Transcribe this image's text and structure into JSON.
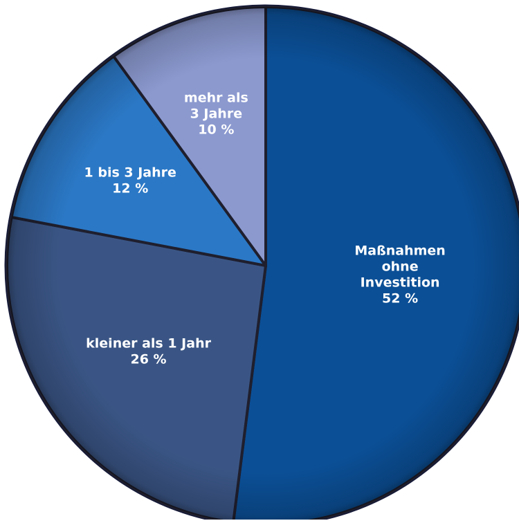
{
  "chart_data": {
    "type": "pie",
    "title": "",
    "slices": [
      {
        "label_lines": [
          "Maßnahmen",
          "ohne",
          "Investition"
        ],
        "value": 52,
        "value_text": "52 %",
        "color": "#0b4f96"
      },
      {
        "label_lines": [
          "kleiner als 1 Jahr"
        ],
        "value": 26,
        "value_text": "26 %",
        "color": "#3a5585"
      },
      {
        "label_lines": [
          "1 bis 3 Jahre"
        ],
        "value": 12,
        "value_text": "12 %",
        "color": "#2b78c6"
      },
      {
        "label_lines": [
          "mehr als",
          "3 Jahre"
        ],
        "value": 10,
        "value_text": "10 %",
        "color": "#8b99cf"
      }
    ],
    "start_angle_deg": 0,
    "direction": "clockwise",
    "legend": "none",
    "outline_color": "#1f1f2e",
    "rim_color": "#151a3a"
  }
}
